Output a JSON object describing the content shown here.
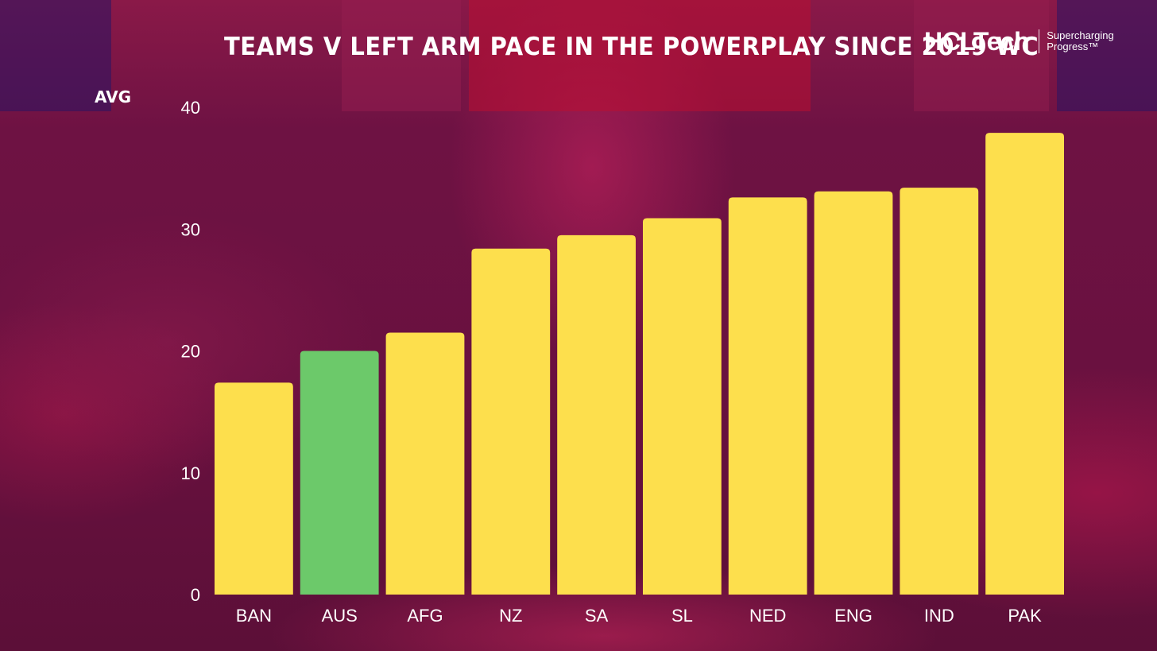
{
  "header": {
    "title": "TEAMS V LEFT ARM PACE IN THE POWERPLAY SINCE 2019 WC",
    "logo_text": "HCLTech",
    "logo_tagline": "Supercharging Progress™"
  },
  "colors": {
    "default_bar": "#fddf4d",
    "highlight_bar": "#6cc96a",
    "text": "#ffffff",
    "background": "#6e1243"
  },
  "chart_data": {
    "type": "bar",
    "title": "TEAMS V LEFT ARM PACE IN THE POWERPLAY SINCE 2019 WC",
    "xlabel": "",
    "ylabel": "AVG",
    "categories": [
      "BAN",
      "AUS",
      "AFG",
      "NZ",
      "SA",
      "SL",
      "NED",
      "ENG",
      "IND",
      "PAK"
    ],
    "values": [
      17.4,
      20.0,
      21.5,
      28.4,
      29.5,
      30.9,
      32.6,
      33.1,
      33.4,
      37.9
    ],
    "highlight": [
      "AUS"
    ],
    "ylim": [
      0,
      40
    ],
    "yticks": [
      0,
      10,
      20,
      30,
      40
    ],
    "grid": false,
    "legend": "none"
  }
}
